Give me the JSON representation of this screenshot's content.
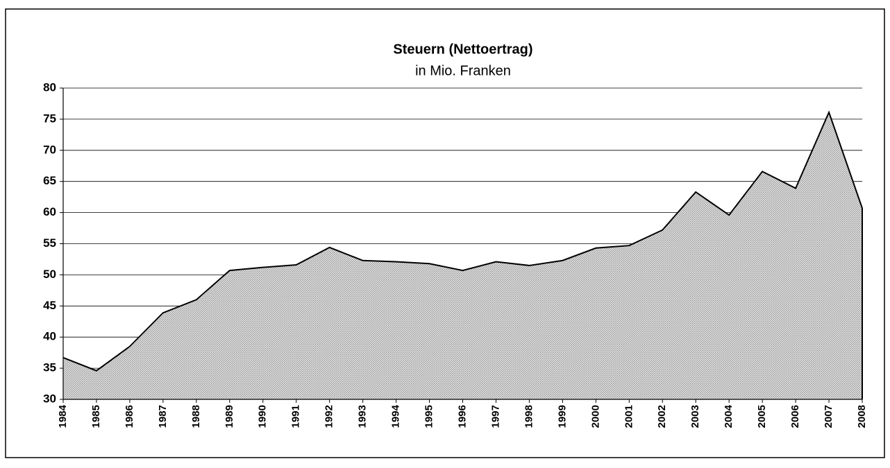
{
  "chart_data": {
    "type": "area",
    "title": "Steuern (Nettoertrag)",
    "subtitle": "in Mio. Franken",
    "categories": [
      "1984",
      "1985",
      "1986",
      "1987",
      "1988",
      "1989",
      "1990",
      "1991",
      "1992",
      "1993",
      "1994",
      "1995",
      "1996",
      "1997",
      "1998",
      "1999",
      "2000",
      "2001",
      "2002",
      "2003",
      "2004",
      "2005",
      "2006",
      "2007",
      "2008"
    ],
    "values": [
      36.7,
      34.6,
      38.5,
      43.9,
      46.0,
      50.7,
      51.2,
      51.6,
      54.4,
      52.3,
      52.1,
      51.8,
      50.7,
      52.1,
      51.5,
      52.3,
      54.3,
      54.7,
      57.2,
      63.3,
      59.6,
      66.6,
      63.9,
      76.1,
      60.7
    ],
    "color": "#c4c4c4",
    "line_color": "#000000",
    "ylim": [
      30,
      80
    ],
    "yticks": [
      30,
      35,
      40,
      45,
      50,
      55,
      60,
      65,
      70,
      75,
      80
    ],
    "grid": true
  }
}
